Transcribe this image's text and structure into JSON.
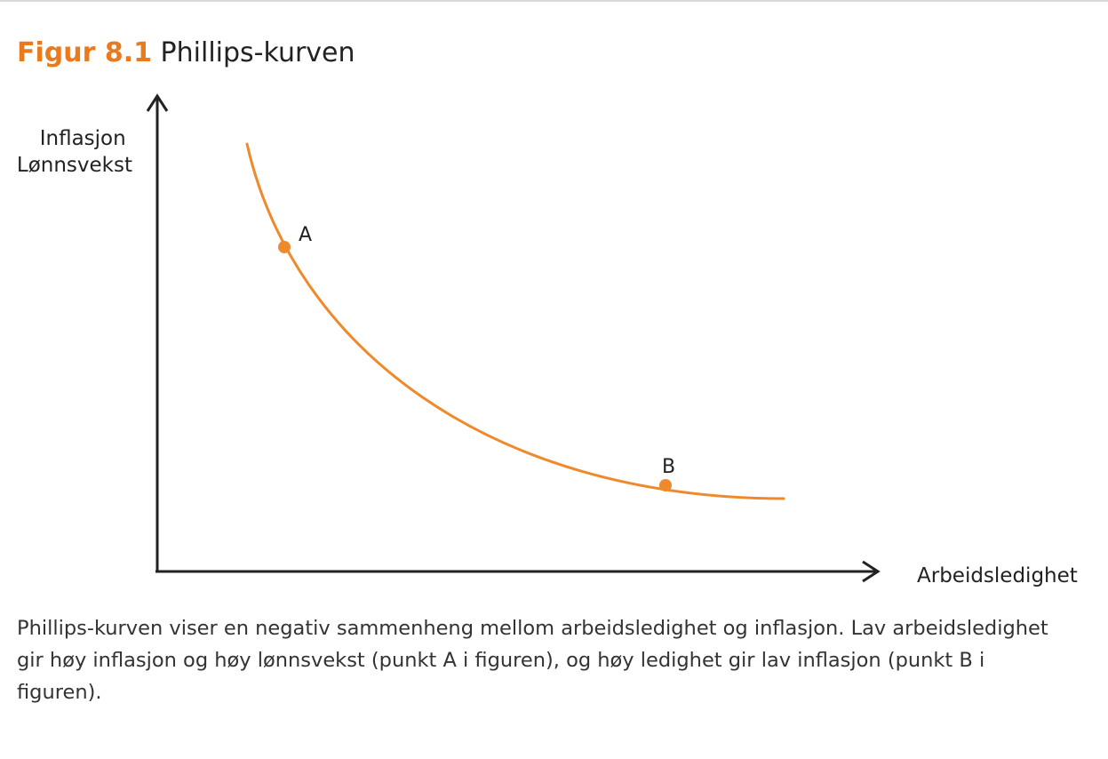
{
  "figure": {
    "number": "Figur 8.1",
    "title": "Phillips-kurven"
  },
  "diagram": {
    "y_axis_label_lines": [
      "Inflasjon",
      "Lønnsvekst"
    ],
    "x_axis_label": "Arbeidsledighet",
    "curve_color": "#ef8a2c",
    "axis_color": "#222222",
    "points": [
      {
        "label": "A"
      },
      {
        "label": "B"
      }
    ]
  },
  "caption": "Phillips-kurven viser en negativ sammenheng mellom arbeidsledighet og inflasjon. Lav arbeidsledighet gir høy inflasjon og høy lønnsvekst (punkt A i figuren), og høy ledighet gir lav inflasjon (punkt B i figuren)."
}
